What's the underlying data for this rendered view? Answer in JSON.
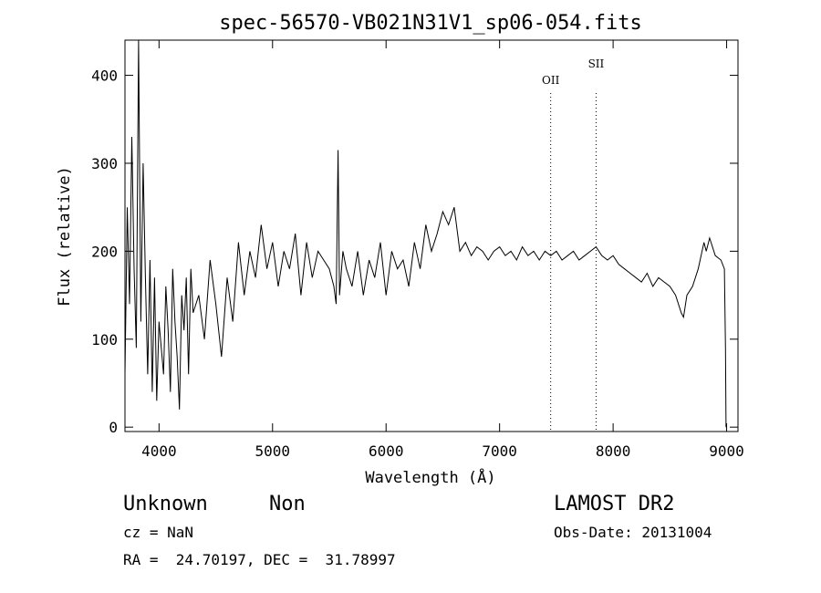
{
  "chart_data": {
    "type": "line",
    "title": "spec-56570-VB021N31V1_sp06-054.fits",
    "xlabel": "Wavelength (Å)",
    "ylabel": "Flux (relative)",
    "xlim": [
      3700,
      9100
    ],
    "ylim": [
      -5,
      440
    ],
    "x_ticks": [
      4000,
      5000,
      6000,
      7000,
      8000,
      9000
    ],
    "y_ticks": [
      0,
      100,
      200,
      300,
      400
    ],
    "grid": false,
    "line_color": "#000000",
    "series": [
      {
        "x": [
          3700,
          3720,
          3740,
          3760,
          3780,
          3800,
          3820,
          3840,
          3860,
          3880,
          3900,
          3920,
          3940,
          3960,
          3980,
          4000,
          4020,
          4040,
          4060,
          4080,
          4100,
          4120,
          4140,
          4160,
          4180,
          4200,
          4220,
          4240,
          4260,
          4280,
          4300,
          4350,
          4400,
          4450,
          4500,
          4550,
          4600,
          4650,
          4700,
          4750,
          4800,
          4850,
          4900,
          4950,
          5000,
          5050,
          5100,
          5150,
          5200,
          5250,
          5300,
          5350,
          5400,
          5450,
          5500,
          5540,
          5560,
          5577,
          5590,
          5620,
          5650,
          5700,
          5750,
          5800,
          5850,
          5900,
          5950,
          6000,
          6050,
          6100,
          6150,
          6200,
          6250,
          6300,
          6350,
          6400,
          6450,
          6500,
          6550,
          6600,
          6650,
          6700,
          6750,
          6800,
          6850,
          6900,
          6950,
          7000,
          7050,
          7100,
          7150,
          7200,
          7250,
          7300,
          7350,
          7400,
          7450,
          7500,
          7550,
          7600,
          7650,
          7700,
          7750,
          7800,
          7850,
          7900,
          7950,
          8000,
          8050,
          8100,
          8150,
          8200,
          8250,
          8300,
          8350,
          8400,
          8450,
          8500,
          8550,
          8600,
          8620,
          8650,
          8700,
          8750,
          8800,
          8820,
          8850,
          8900,
          8950,
          8980,
          8990,
          8995
        ],
        "y": [
          60,
          250,
          140,
          330,
          180,
          90,
          440,
          120,
          300,
          170,
          60,
          190,
          40,
          170,
          30,
          120,
          90,
          60,
          160,
          110,
          40,
          180,
          120,
          80,
          20,
          150,
          110,
          170,
          60,
          180,
          130,
          150,
          100,
          190,
          140,
          80,
          170,
          120,
          210,
          150,
          200,
          170,
          230,
          180,
          210,
          160,
          200,
          180,
          220,
          150,
          210,
          170,
          200,
          190,
          180,
          160,
          140,
          315,
          150,
          200,
          180,
          160,
          200,
          150,
          190,
          170,
          210,
          150,
          200,
          180,
          190,
          160,
          210,
          180,
          230,
          200,
          220,
          245,
          230,
          250,
          200,
          210,
          195,
          205,
          200,
          190,
          200,
          205,
          195,
          200,
          190,
          205,
          195,
          200,
          190,
          200,
          195,
          200,
          190,
          195,
          200,
          190,
          195,
          200,
          205,
          195,
          190,
          195,
          185,
          180,
          175,
          170,
          165,
          175,
          160,
          170,
          165,
          160,
          150,
          130,
          125,
          150,
          160,
          180,
          210,
          200,
          215,
          195,
          190,
          180,
          90,
          0
        ]
      }
    ],
    "annotations": [
      {
        "label": "OII",
        "x": 7450
      },
      {
        "label": "SII",
        "x": 7850
      }
    ]
  },
  "info": {
    "class": "Unknown",
    "subclass": "Non",
    "cz": "cz = NaN",
    "radec": "RA =  24.70197, DEC =  31.78997",
    "survey": "LAMOST DR2",
    "obsdate": "Obs-Date: 20131004"
  }
}
